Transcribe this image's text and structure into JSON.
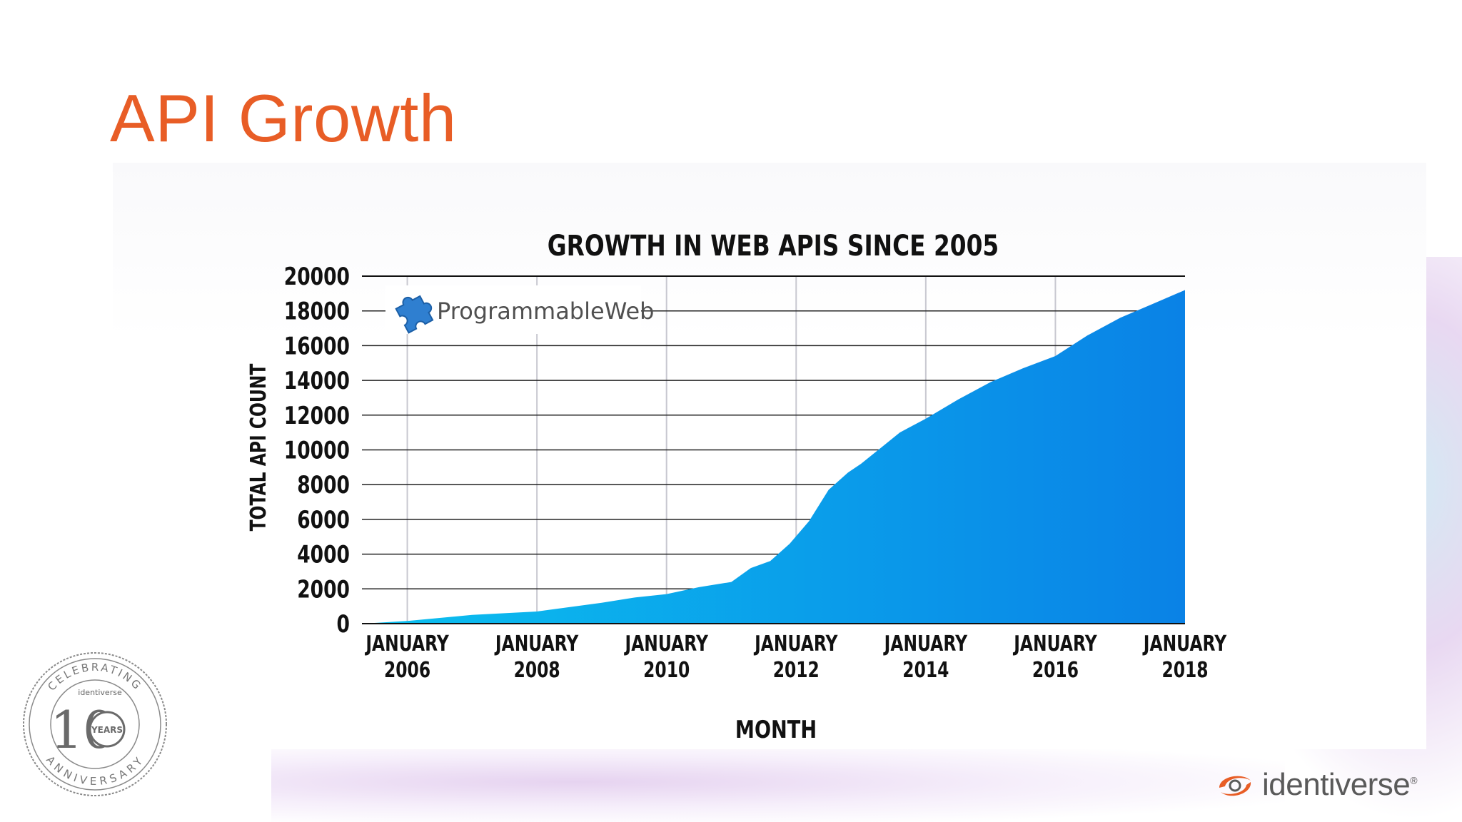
{
  "slide": {
    "title": "API Growth"
  },
  "chart_data": {
    "type": "area",
    "title": "GROWTH IN WEB APIS SINCE 2005",
    "xlabel": "MONTH",
    "ylabel": "TOTAL API COUNT",
    "ylim": [
      0,
      20000
    ],
    "y_ticks": [
      "20000",
      "18000",
      "16000",
      "14000",
      "12000",
      "10000",
      "8000",
      "6000",
      "4000",
      "2000",
      "0"
    ],
    "x_ticks": [
      {
        "line1": "JANUARY",
        "line2": "2006",
        "year": 2006
      },
      {
        "line1": "JANUARY",
        "line2": "2008",
        "year": 2008
      },
      {
        "line1": "JANUARY",
        "line2": "2010",
        "year": 2010
      },
      {
        "line1": "JANUARY",
        "line2": "2012",
        "year": 2012
      },
      {
        "line1": "JANUARY",
        "line2": "2014",
        "year": 2014
      },
      {
        "line1": "JANUARY",
        "line2": "2016",
        "year": 2016
      },
      {
        "line1": "JANUARY",
        "line2": "2018",
        "year": 2018
      }
    ],
    "xlim": [
      2005.3,
      2018.0
    ],
    "grid": true,
    "series": [
      {
        "x": [
          2005.3,
          2006.0,
          2007.0,
          2008.0,
          2009.0,
          2009.5,
          2010.0,
          2010.5,
          2011.0,
          2011.3,
          2011.6,
          2011.9,
          2012.2,
          2012.5,
          2012.8,
          2013.0,
          2013.3,
          2013.6,
          2014.0,
          2014.5,
          2015.0,
          2015.5,
          2016.0,
          2016.5,
          2017.0,
          2017.5,
          2018.0
        ],
        "y": [
          0,
          150,
          500,
          700,
          1200,
          1500,
          1700,
          2100,
          2400,
          3200,
          3600,
          4600,
          5900,
          7700,
          8700,
          9200,
          10100,
          11000,
          11800,
          12900,
          13900,
          14700,
          15400,
          16600,
          17600,
          18400,
          19200
        ]
      }
    ],
    "colors": {
      "fill_start": "#0bc0ef",
      "fill_end": "#0a82e6"
    }
  },
  "watermark": {
    "name": "ProgrammableWeb",
    "icon": "puzzle-piece-icon"
  },
  "badge": {
    "text_top": "CELEBRATING",
    "brand": "identiverse",
    "number": "10",
    "unit": "YEARS",
    "text_bottom": "ANNIVERSARY"
  },
  "brand": {
    "name": "identiverse",
    "mark": "®",
    "icon": "identiverse-swirl-icon",
    "color": "#e85d26"
  }
}
